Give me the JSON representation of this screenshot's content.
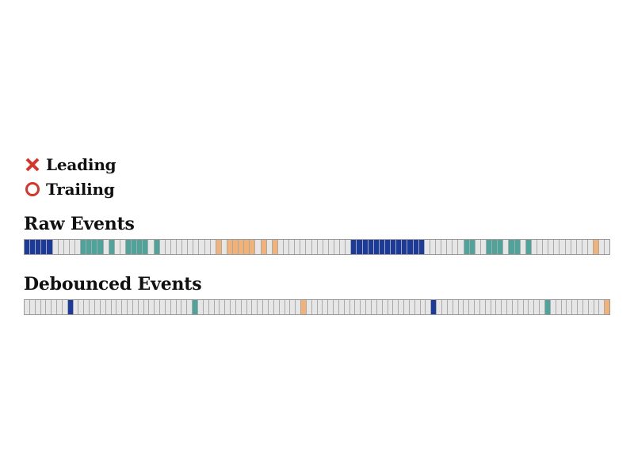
{
  "legend": {
    "leading_label": "Leading",
    "trailing_label": "Trailing",
    "leading_icon": "cross-icon",
    "trailing_icon": "circle-icon",
    "icon_color": "#d9342b"
  },
  "sections": {
    "raw_title": "Raw Events",
    "debounced_title": "Debounced Events"
  },
  "colors": {
    "empty": "#e6e6e6",
    "navy": "#1b3a99",
    "teal": "#4ea39b",
    "orange": "#f2b277"
  },
  "raw_events": "NNNNNEEEEETTTTETEETTTTETEEEEEEEEEEOEOOOOOEOEOEEEEEEEEEEEEENNNNNNNNNNNNNEEEEEEETTEETTTETTETEEEEEEEEEEEOEE",
  "debounced_events": "EEEEEEEENEEEEEEEEEEEEEEEEEEEEEETEEEEEEEEEEEEEEEEEEEOEEEEEEEEEEEEEEEEEEEEEEENEEEEEEEEEEEEEEEEEEEETEEEEEEEEEEO"
}
